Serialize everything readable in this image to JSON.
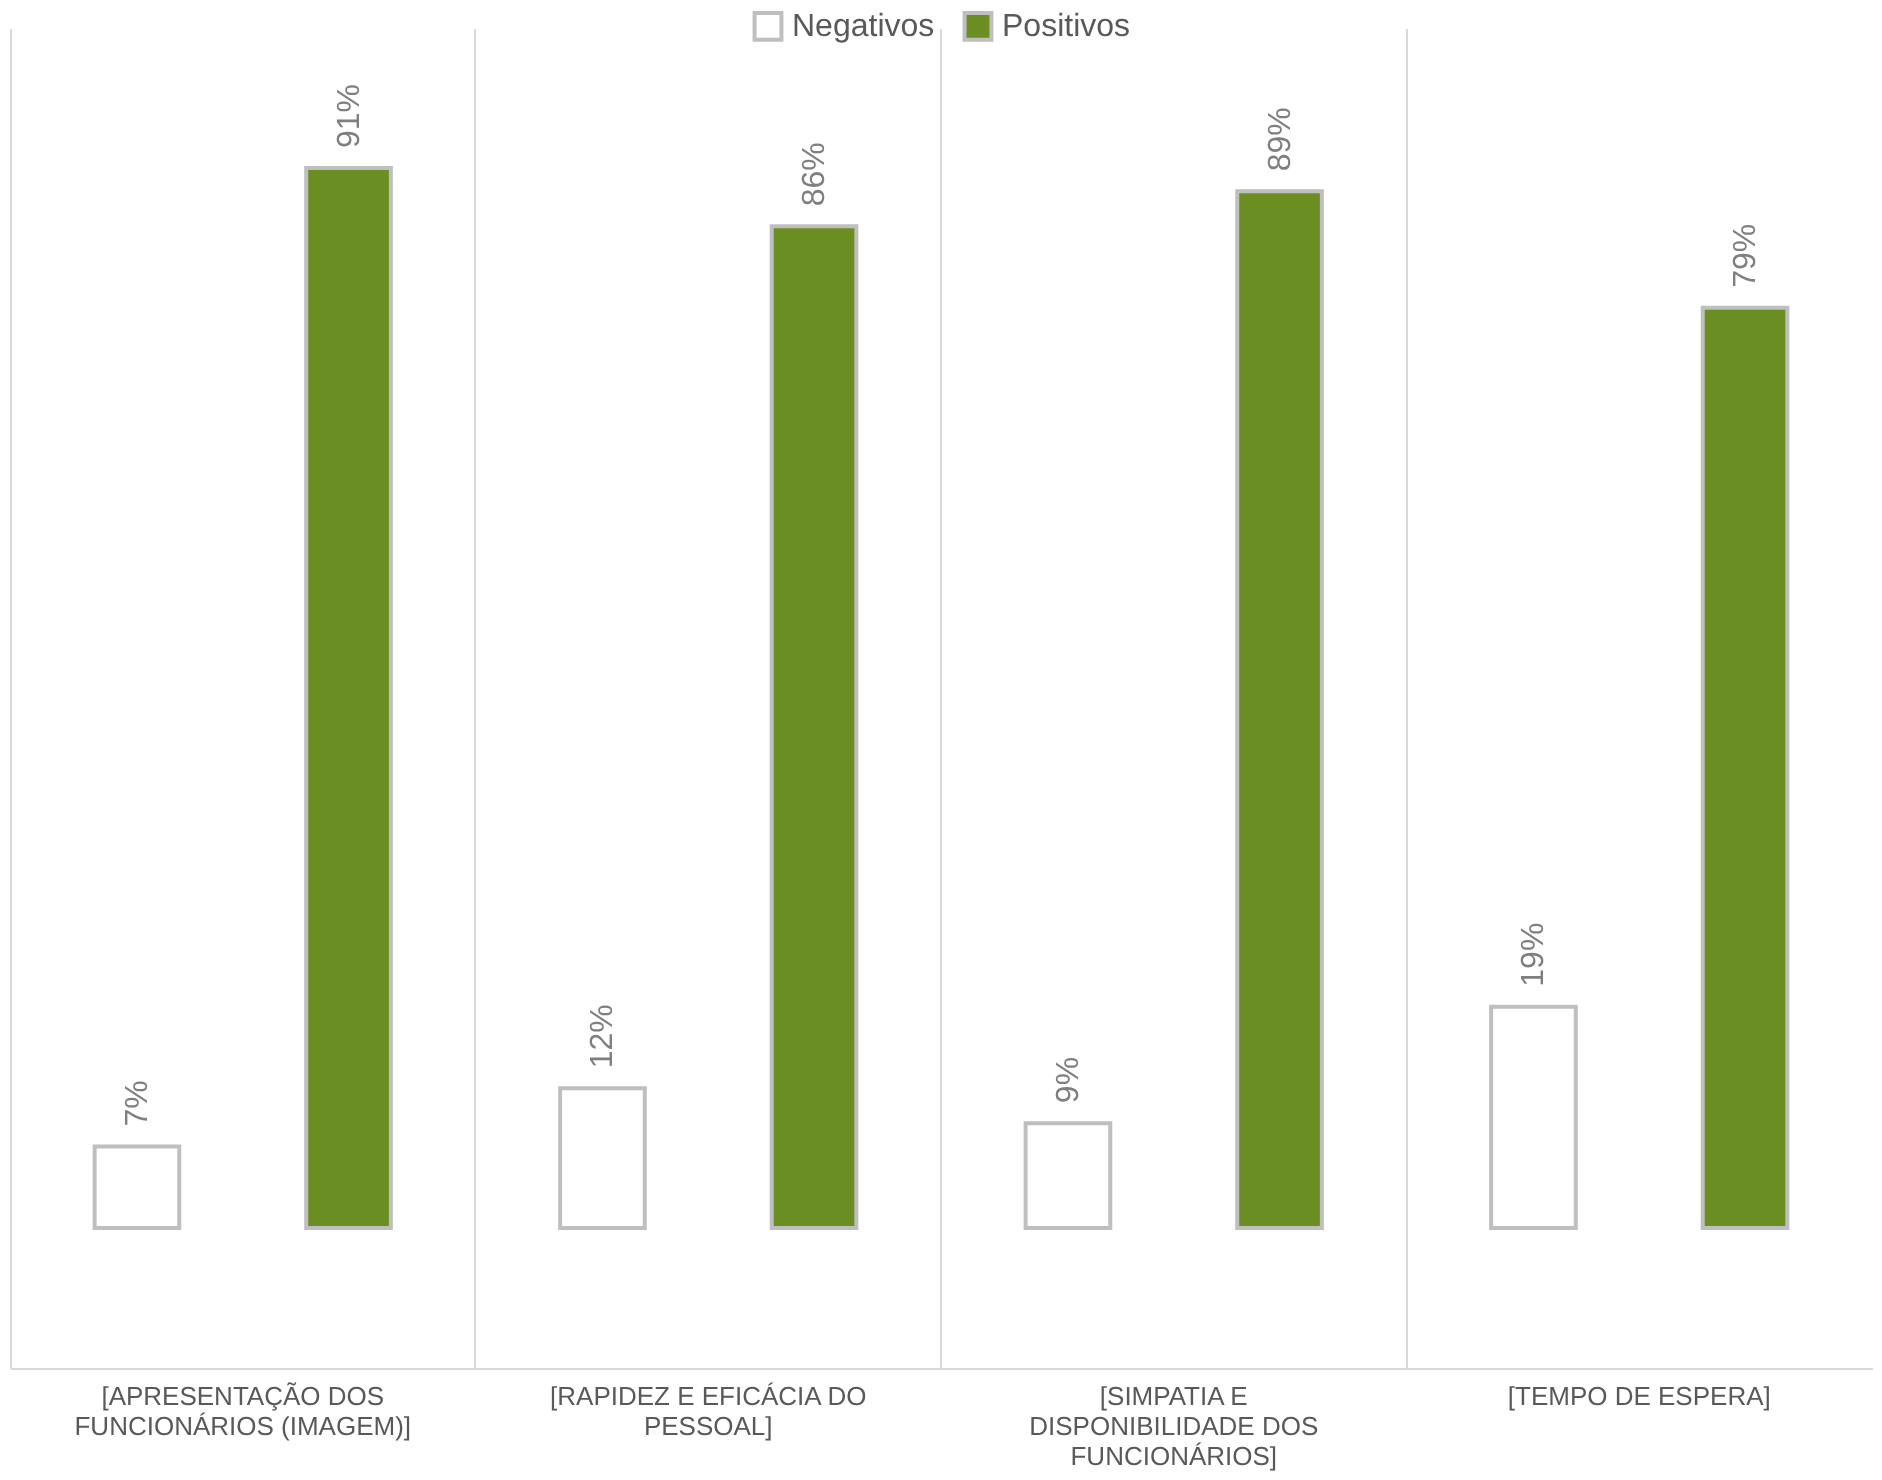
{
  "chart_data": {
    "type": "bar",
    "categories": [
      "[APRESENTAÇÃO DOS FUNCIONÁRIOS (IMAGEM)]",
      "[RAPIDEZ E EFICÁCIA DO PESSOAL]",
      "[SIMPATIA E DISPONIBILIDADE DOS FUNCIONÁRIOS]",
      "[TEMPO DE ESPERA]"
    ],
    "series": [
      {
        "name": "Negativos",
        "color": "#ffffff",
        "values": [
          7,
          12,
          9,
          19
        ],
        "value_labels": [
          "7%",
          "12%",
          "9%",
          "19%"
        ]
      },
      {
        "name": "Positivos",
        "color": "#6b8e23",
        "values": [
          91,
          86,
          89,
          79
        ],
        "value_labels": [
          "91%",
          "86%",
          "89%",
          "79%"
        ]
      }
    ],
    "grid": "x",
    "legend": "top"
  }
}
